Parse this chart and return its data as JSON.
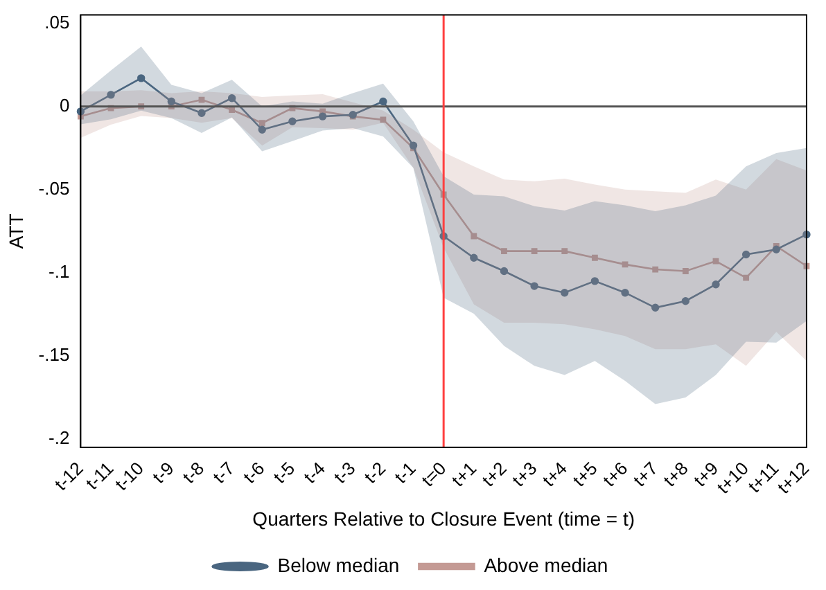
{
  "chart_data": {
    "type": "line",
    "xlabel": "Quarters Relative to Closure Event (time = t)",
    "ylabel": "ATT",
    "categories": [
      "t-12",
      "t-11",
      "t-10",
      "t-9",
      "t-8",
      "t-7",
      "t-6",
      "t-5",
      "t-4",
      "t-3",
      "t-2",
      "t-1",
      "t=0",
      "t+1",
      "t+2",
      "t+3",
      "t+4",
      "t+5",
      "t+6",
      "t+7",
      "t+8",
      "t+9",
      "t+10",
      "t+11",
      "t+12"
    ],
    "series": [
      {
        "name": "Below median",
        "color": "#4a6680",
        "marker": "circle",
        "values": [
          -0.003,
          0.007,
          0.017,
          0.003,
          -0.004,
          0.005,
          -0.014,
          -0.009,
          -0.006,
          -0.005,
          0.003,
          -0.0235,
          -0.078,
          -0.091,
          -0.099,
          -0.108,
          -0.112,
          -0.105,
          -0.112,
          -0.121,
          -0.117,
          -0.107,
          -0.089,
          -0.086,
          -0.077
        ],
        "upper": [
          0.0066,
          0.0216,
          0.036,
          0.013,
          0.008,
          0.016,
          0,
          0.003,
          0.0016,
          0.008,
          0.0137,
          -0.009,
          -0.042,
          -0.053,
          -0.054,
          -0.06,
          -0.0626,
          -0.057,
          -0.0595,
          -0.063,
          -0.0595,
          -0.0536,
          -0.036,
          -0.028,
          -0.025
        ],
        "lower": [
          -0.0107,
          -0.0077,
          -0.0025,
          -0.007,
          -0.016,
          -0.0066,
          -0.027,
          -0.0208,
          -0.0145,
          -0.013,
          -0.018,
          -0.037,
          -0.115,
          -0.1246,
          -0.144,
          -0.156,
          -0.1615,
          -0.153,
          -0.165,
          -0.179,
          -0.175,
          -0.1615,
          -0.1415,
          -0.142,
          -0.129
        ]
      },
      {
        "name": "Above median",
        "color": "#c49a94",
        "marker": "square",
        "values": [
          -0.006,
          -0.001,
          0,
          0,
          0.004,
          -0.002,
          -0.01,
          -0.001,
          -0.003,
          -0.006,
          -0.008,
          -0.025,
          -0.053,
          -0.078,
          -0.087,
          -0.087,
          -0.087,
          -0.091,
          -0.095,
          -0.098,
          -0.099,
          -0.093,
          -0.103,
          -0.084,
          -0.096
        ],
        "upper": [
          0.009,
          0.009,
          0.0098,
          0.008,
          0.009,
          0.008,
          0.0057,
          0.0066,
          0.0074,
          0.0025,
          -0.0025,
          -0.014,
          -0.0276,
          -0.036,
          -0.044,
          -0.045,
          -0.0434,
          -0.047,
          -0.05,
          -0.051,
          -0.052,
          -0.044,
          -0.05,
          -0.0317,
          -0.0385
        ],
        "lower": [
          -0.0189,
          -0.011,
          -0.0057,
          -0.007,
          -0.0098,
          -0.007,
          -0.0235,
          -0.0125,
          -0.013,
          -0.014,
          -0.0098,
          -0.037,
          -0.085,
          -0.119,
          -0.13,
          -0.13,
          -0.131,
          -0.134,
          -0.138,
          -0.146,
          -0.146,
          -0.143,
          -0.156,
          -0.1355,
          -0.153
        ]
      }
    ],
    "ylim": [
      -0.205,
      0.055
    ],
    "yticks": [
      {
        "value": 0.05,
        "label": ".05"
      },
      0,
      {
        "value": -0.05,
        "label": "-.05"
      },
      {
        "value": -0.1,
        "label": "-.1"
      },
      {
        "value": -0.15,
        "label": "-.15"
      },
      {
        "value": -0.2,
        "label": "-.2"
      }
    ],
    "ref_lines": [
      {
        "axis": "y",
        "value": 0,
        "color": "#555555"
      },
      {
        "axis": "x",
        "value": "t=0",
        "color": "#ff4040"
      }
    ],
    "grid": false,
    "legend": "bottom"
  }
}
